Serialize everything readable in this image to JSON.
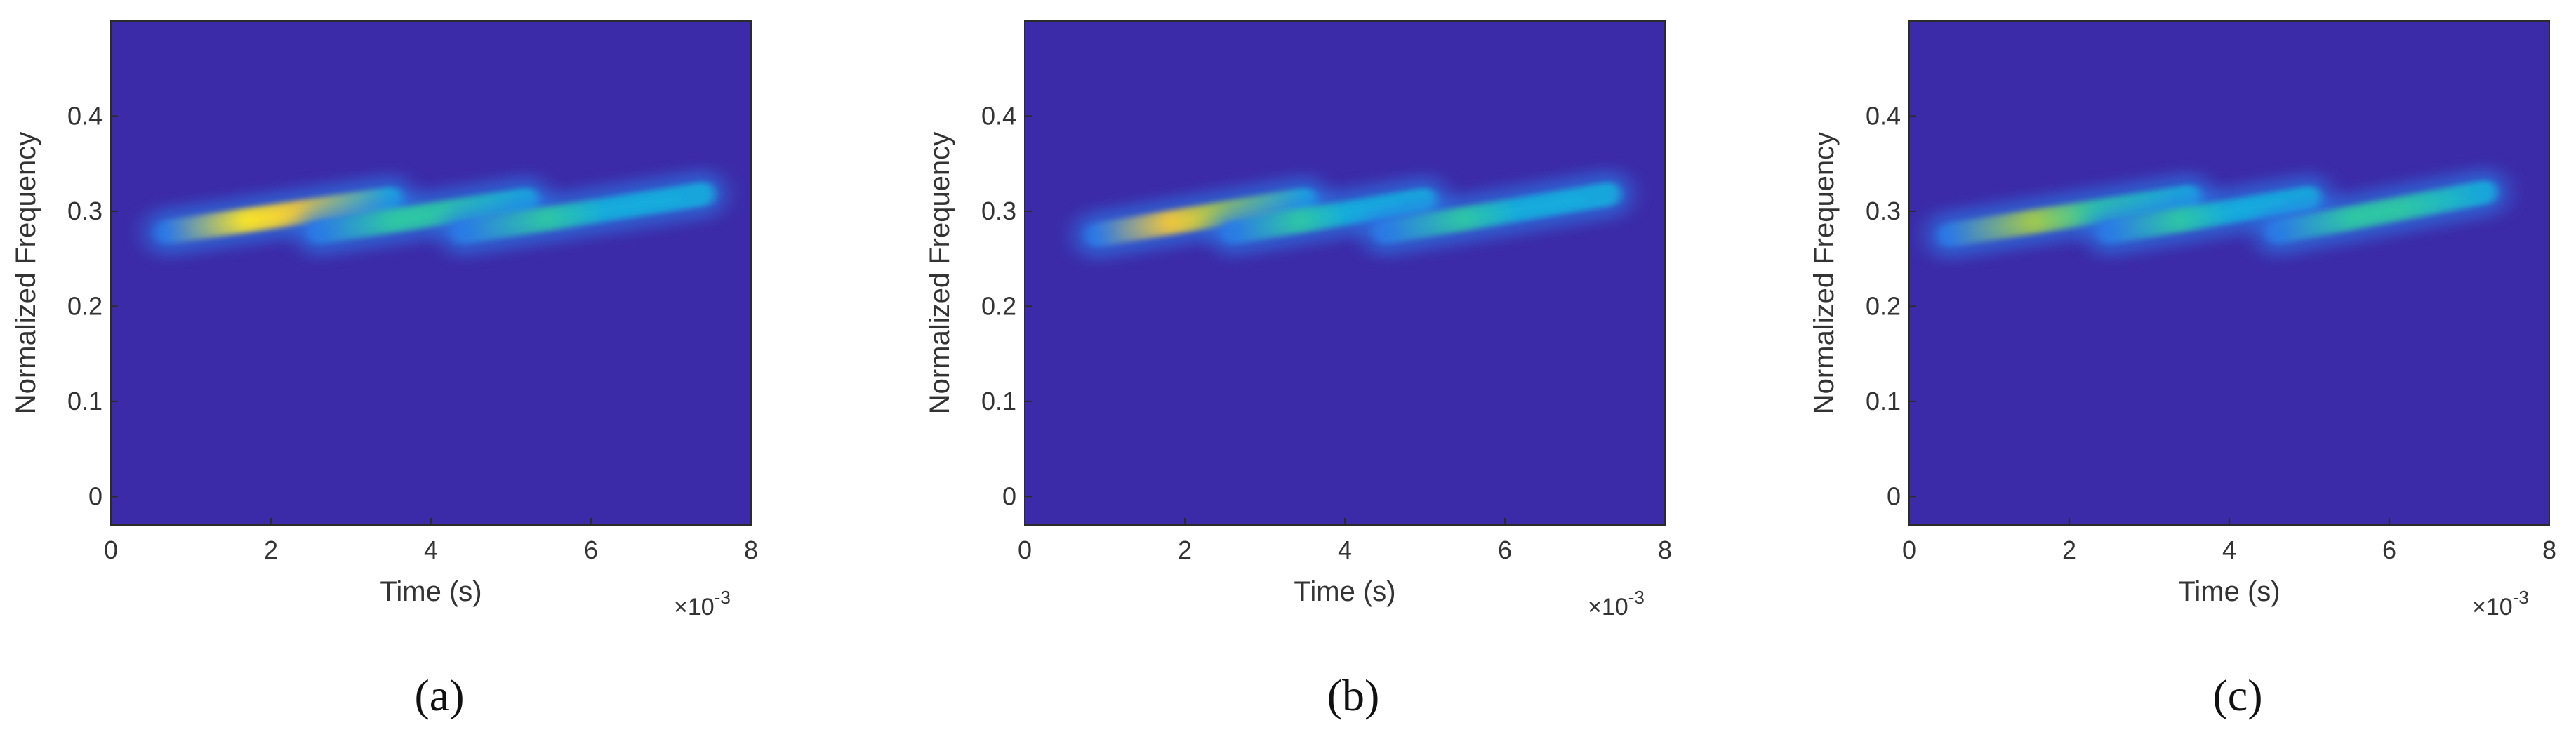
{
  "chart_data": [
    {
      "type": "heatmap",
      "panel_label": "(a)",
      "xlabel": "Time (s)",
      "ylabel": "Normalized Frequency",
      "x_multiplier": "×10",
      "x_multiplier_exponent": "-3",
      "xlim": [
        0,
        8
      ],
      "ylim": [
        -0.03,
        0.5
      ],
      "xticks": [
        0,
        2,
        4,
        6,
        8
      ],
      "xtick_labels": [
        "0",
        "2",
        "4",
        "6",
        "8"
      ],
      "yticks": [
        0,
        0.1,
        0.2,
        0.3,
        0.4
      ],
      "ytick_labels": [
        "0",
        "0.1",
        "0.2",
        "0.3",
        "0.4"
      ],
      "background_color": "#3c2ba8",
      "ridges": [
        {
          "x0": 0.7,
          "y0": 0.278,
          "x1": 3.5,
          "y1": 0.313,
          "peak": 1.0
        },
        {
          "x0": 2.6,
          "y0": 0.278,
          "x1": 5.2,
          "y1": 0.312,
          "peak": 0.75
        },
        {
          "x0": 4.4,
          "y0": 0.278,
          "x1": 7.4,
          "y1": 0.318,
          "peak": 0.7
        }
      ]
    },
    {
      "type": "heatmap",
      "panel_label": "(b)",
      "xlabel": "Time (s)",
      "ylabel": "Normalized Frequency",
      "x_multiplier": "×10",
      "x_multiplier_exponent": "-3",
      "xlim": [
        0,
        8
      ],
      "ylim": [
        -0.03,
        0.5
      ],
      "xticks": [
        0,
        2,
        4,
        6,
        8
      ],
      "xtick_labels": [
        "0",
        "2",
        "4",
        "6",
        "8"
      ],
      "yticks": [
        0,
        0.1,
        0.2,
        0.3,
        0.4
      ],
      "ytick_labels": [
        "0",
        "0.1",
        "0.2",
        "0.3",
        "0.4"
      ],
      "background_color": "#3c2ba8",
      "ridges": [
        {
          "x0": 0.9,
          "y0": 0.275,
          "x1": 3.5,
          "y1": 0.312,
          "peak": 0.95
        },
        {
          "x0": 2.6,
          "y0": 0.278,
          "x1": 5.0,
          "y1": 0.312,
          "peak": 0.7
        },
        {
          "x0": 4.5,
          "y0": 0.278,
          "x1": 7.3,
          "y1": 0.318,
          "peak": 0.7
        }
      ]
    },
    {
      "type": "heatmap",
      "panel_label": "(c)",
      "xlabel": "Time (s)",
      "ylabel": "Normalized Frequency",
      "x_multiplier": "×10",
      "x_multiplier_exponent": "-3",
      "xlim": [
        0,
        8
      ],
      "ylim": [
        -0.03,
        0.5
      ],
      "xticks": [
        0,
        2,
        4,
        6,
        8
      ],
      "xtick_labels": [
        "0",
        "2",
        "4",
        "6",
        "8"
      ],
      "yticks": [
        0,
        0.1,
        0.2,
        0.3,
        0.4
      ],
      "ytick_labels": [
        "0",
        "0.1",
        "0.2",
        "0.3",
        "0.4"
      ],
      "background_color": "#3c2ba8",
      "ridges": [
        {
          "x0": 0.5,
          "y0": 0.275,
          "x1": 3.5,
          "y1": 0.315,
          "peak": 0.85
        },
        {
          "x0": 2.5,
          "y0": 0.278,
          "x1": 5.0,
          "y1": 0.314,
          "peak": 0.7
        },
        {
          "x0": 4.6,
          "y0": 0.278,
          "x1": 7.2,
          "y1": 0.32,
          "peak": 0.75
        }
      ]
    }
  ]
}
